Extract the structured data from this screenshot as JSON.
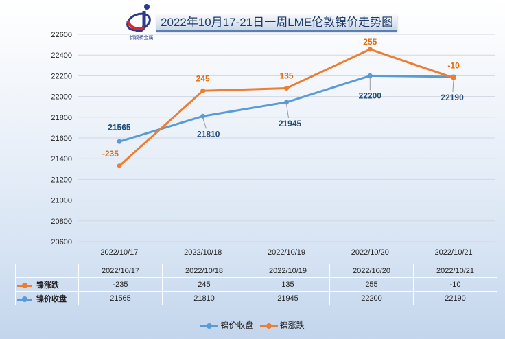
{
  "title": "2022年10月17-21日一周LME伦敦镍价走势图",
  "logo_text": "新颖桥金属",
  "colors": {
    "close": "#5b9bd5",
    "change": "#ed7d31",
    "close_label": "#1f4e79",
    "change_label": "#e26b0a"
  },
  "chart_data": {
    "type": "line",
    "categories": [
      "2022/10/17",
      "2022/10/18",
      "2022/10/19",
      "2022/10/20",
      "2022/10/21"
    ],
    "series": [
      {
        "name": "镍价收盘",
        "values": [
          21565,
          21810,
          21945,
          22200,
          22190
        ]
      },
      {
        "name": "镍涨跌",
        "values": [
          -235,
          245,
          135,
          255,
          -10
        ]
      }
    ],
    "change_series_plotted_y": [
      21330,
      22055,
      22080,
      22455,
      22180
    ],
    "ylim": [
      20600,
      22600
    ],
    "yticks": [
      20600,
      20800,
      21000,
      21200,
      21400,
      21600,
      21800,
      22000,
      22200,
      22400,
      22600
    ],
    "grid": true,
    "legend": "bottom"
  },
  "table": {
    "headers": [
      "2022/10/17",
      "2022/10/18",
      "2022/10/19",
      "2022/10/20",
      "2022/10/21"
    ],
    "rows": [
      {
        "label": "镍涨跌",
        "values": [
          "-235",
          "245",
          "135",
          "255",
          "-10"
        ]
      },
      {
        "label": "镍价收盘",
        "values": [
          "21565",
          "21810",
          "21945",
          "22200",
          "22190"
        ]
      }
    ]
  },
  "legend": [
    "镍价收盘",
    "镍涨跌"
  ]
}
